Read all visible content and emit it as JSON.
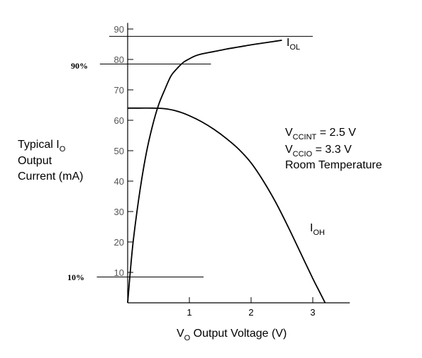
{
  "chart_data": {
    "type": "line",
    "xlabel": {
      "main": "V",
      "sub": "O",
      "rest": " Output Voltage (V)"
    },
    "ylabel": {
      "line1_main": "Typical I",
      "line1_sub": "O",
      "line2": "Output",
      "line3": "Current (mA)"
    },
    "xlim": [
      0,
      3.6
    ],
    "ylim": [
      0,
      92
    ],
    "xticks": [
      {
        "value": 1,
        "label": "1"
      },
      {
        "value": 2,
        "label": "2"
      },
      {
        "value": 3,
        "label": "3"
      }
    ],
    "yticks": [
      {
        "value": 10,
        "label": "10"
      },
      {
        "value": 20,
        "label": "20"
      },
      {
        "value": 30,
        "label": "30"
      },
      {
        "value": 40,
        "label": "40"
      },
      {
        "value": 50,
        "label": "50"
      },
      {
        "value": 60,
        "label": "60"
      },
      {
        "value": 70,
        "label": "70"
      },
      {
        "value": 80,
        "label": "80"
      },
      {
        "value": 90,
        "label": "90"
      }
    ],
    "series": [
      {
        "name": "IOL",
        "label_main": "I",
        "label_sub": "OL",
        "x": [
          0,
          0.05,
          0.1,
          0.2,
          0.3,
          0.4,
          0.5,
          0.6,
          0.7,
          0.8,
          0.9,
          1.0,
          1.1,
          1.2,
          1.4,
          1.6,
          1.8,
          2.0,
          2.2,
          2.4,
          2.5
        ],
        "y": [
          0,
          12,
          22,
          37,
          49,
          58,
          65,
          70,
          74.5,
          77,
          79,
          80.2,
          81.2,
          81.8,
          82.6,
          83.4,
          84.1,
          84.8,
          85.4,
          86,
          86.3
        ]
      },
      {
        "name": "IOH",
        "label_main": "I",
        "label_sub": "OH",
        "x": [
          0,
          0.2,
          0.4,
          0.6,
          0.8,
          1.0,
          1.2,
          1.4,
          1.6,
          1.8,
          2.0,
          2.2,
          2.4,
          2.6,
          2.8,
          3.0,
          3.1,
          3.2
        ],
        "y": [
          64,
          64,
          64,
          63.8,
          63,
          61.5,
          59.5,
          57,
          54,
          50.5,
          46,
          40,
          33,
          25,
          16.5,
          8,
          4,
          0
        ]
      }
    ],
    "reference_lines": [
      {
        "y": 87.6,
        "x_from": -0.3,
        "x_to": 3.0
      },
      {
        "y": 78.5,
        "x_from": -0.45,
        "x_to": 1.35,
        "label": "90%"
      },
      {
        "y": 8.5,
        "x_from": -0.5,
        "x_to": 1.23,
        "label": "10%"
      }
    ],
    "annotations": [
      {
        "main": "V",
        "sub": "CCINT",
        "rest": " = 2.5 V"
      },
      {
        "main": "V",
        "sub": "CCIO",
        "rest": " = 3.3 V"
      },
      {
        "main": "Room Temperature",
        "sub": "",
        "rest": ""
      }
    ],
    "grid": false,
    "legend": "none"
  }
}
